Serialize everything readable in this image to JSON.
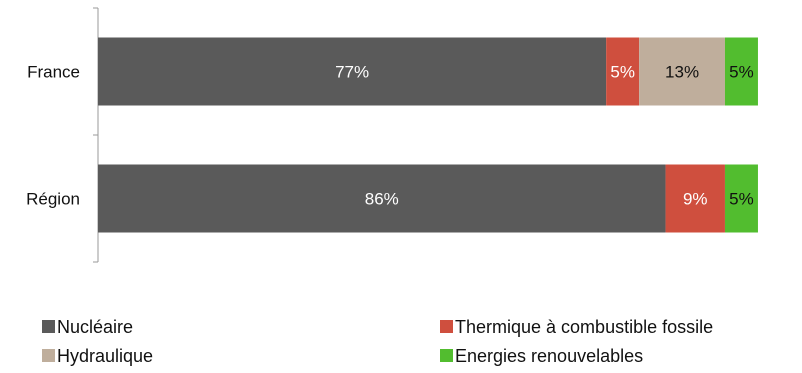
{
  "chart_data": {
    "type": "bar",
    "orientation": "horizontal",
    "stacked": true,
    "percent_stacked": true,
    "categories": [
      "France",
      "Région"
    ],
    "series": [
      {
        "name": "Nucléaire",
        "values": [
          77,
          86
        ],
        "labels": [
          "77%",
          "86%"
        ],
        "color": "#5a5a5a",
        "label_color": "#ffffff"
      },
      {
        "name": "Thermique à combustible fossile",
        "values": [
          5,
          9
        ],
        "labels": [
          "5%",
          "9%"
        ],
        "color": "#cf4f3e",
        "label_color": "#ffffff"
      },
      {
        "name": "Hydraulique",
        "values": [
          13,
          0
        ],
        "labels": [
          "13%",
          ""
        ],
        "color": "#bfae9c",
        "label_color": "#111111"
      },
      {
        "name": "Energies renouvelables",
        "values": [
          5,
          5
        ],
        "labels": [
          "5%",
          "5%"
        ],
        "color": "#52bd2f",
        "label_color": "#111111"
      }
    ],
    "xlim": [
      0,
      100
    ],
    "grid": false,
    "legend_position": "bottom"
  }
}
